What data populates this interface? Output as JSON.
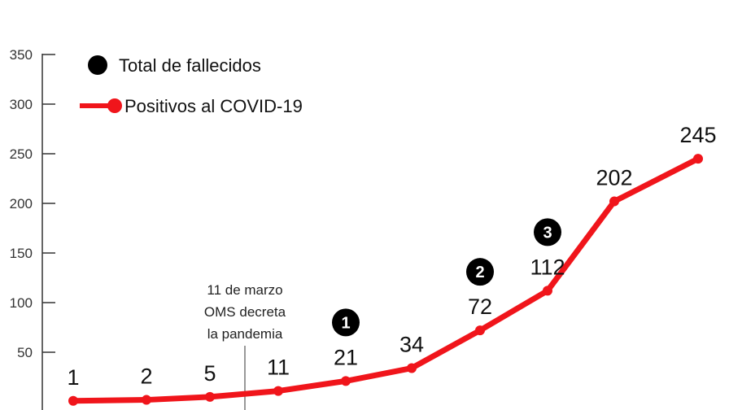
{
  "chart_data": {
    "type": "line",
    "title": "",
    "xlabel": "",
    "ylabel": "",
    "ylim": [
      0,
      350
    ],
    "yticks": [
      50,
      100,
      150,
      200,
      250,
      300,
      350
    ],
    "grid": false,
    "legend_position": "top-left",
    "legend": [
      {
        "label": "Total de fallecidos",
        "marker": "black-circle",
        "color": "#000000"
      },
      {
        "label": "Positivos al COVID-19",
        "marker": "red-line-dot",
        "color": "#f0151b"
      }
    ],
    "series": [
      {
        "name": "Positivos al COVID-19",
        "color": "#f0151b",
        "values": [
          1,
          2,
          5,
          11,
          21,
          34,
          72,
          112,
          202,
          245
        ]
      }
    ],
    "deaths": [
      null,
      null,
      null,
      null,
      "1",
      null,
      "2",
      "3",
      null,
      null
    ],
    "annotation": {
      "point_index": 3,
      "lines": [
        "11 de marzo",
        "OMS decreta",
        "la pandemia"
      ]
    }
  }
}
